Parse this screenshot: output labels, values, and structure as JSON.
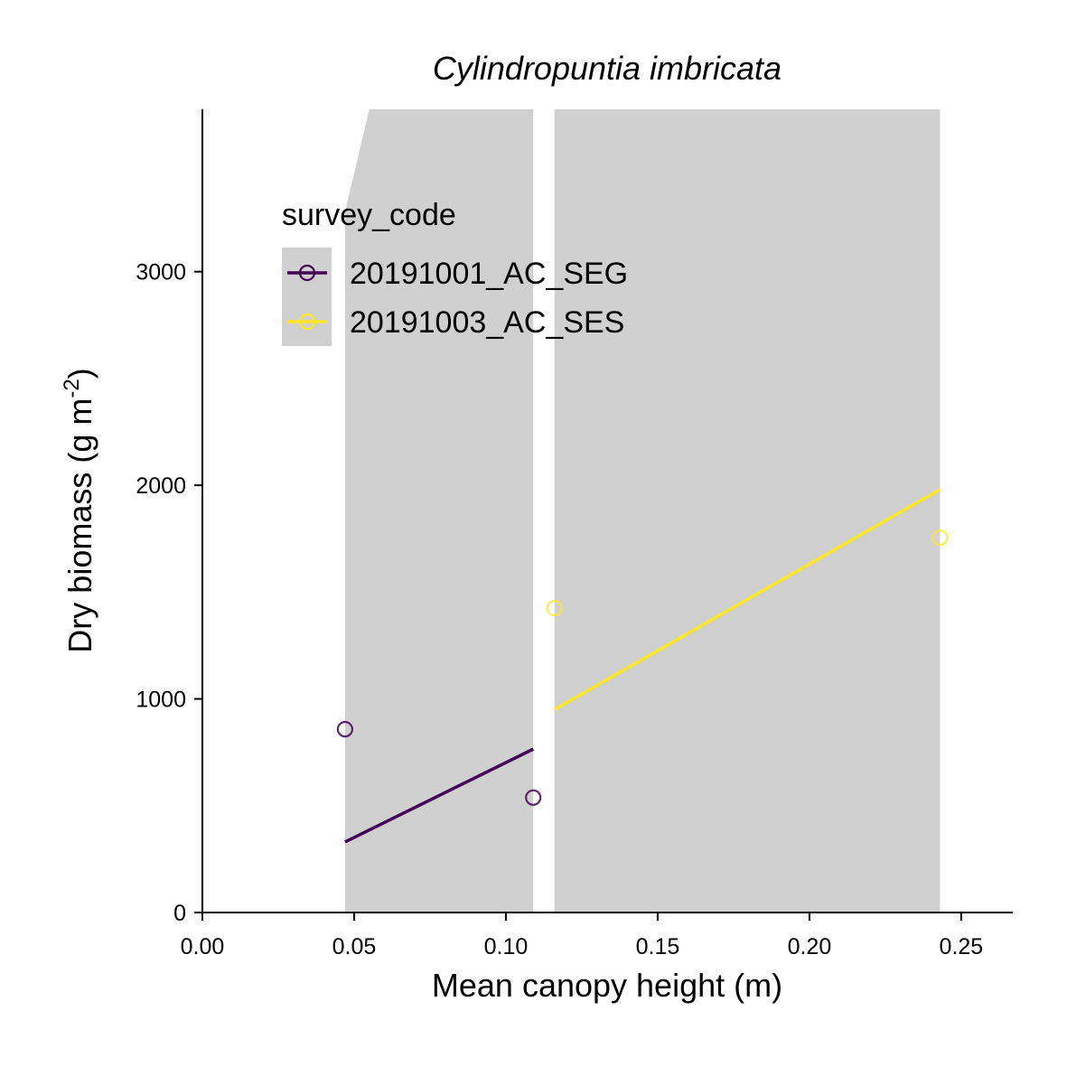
{
  "chart_data": {
    "type": "scatter",
    "title": "Cylindropuntia imbricata",
    "xlabel": "Mean canopy height (m)",
    "ylabel": "Dry biomass (g m",
    "ylabel_sup": "-2",
    "ylabel_close": ")",
    "xlim": [
      0,
      0.267
    ],
    "ylim": [
      0,
      3760
    ],
    "xticks": [
      0.0,
      0.05,
      0.1,
      0.15,
      0.2,
      0.25
    ],
    "xtick_labels": [
      "0.00",
      "0.05",
      "0.10",
      "0.15",
      "0.20",
      "0.25"
    ],
    "yticks": [
      0,
      1000,
      2000,
      3000
    ],
    "ytick_labels": [
      "0",
      "1000",
      "2000",
      "3000"
    ],
    "grid": false,
    "legend": {
      "title": "survey_code",
      "placement": "top-left",
      "entries": [
        "20191001_AC_SEG",
        "20191003_AC_SES"
      ]
    },
    "series": [
      {
        "name": "20191001_AC_SEG",
        "color": "#440154",
        "points": [
          {
            "x": 0.047,
            "y": 858
          },
          {
            "x": 0.109,
            "y": 538
          }
        ],
        "fit_line": [
          [
            0.047,
            330
          ],
          [
            0.109,
            765
          ]
        ],
        "ribbon": {
          "x": [
            0.047,
            0.055,
            0.109
          ],
          "upper": [
            3280,
            3760,
            3760
          ],
          "lower": [
            0,
            0,
            0
          ]
        }
      },
      {
        "name": "20191003_AC_SES",
        "color": "#FDE725",
        "points": [
          {
            "x": 0.116,
            "y": 1425
          },
          {
            "x": 0.243,
            "y": 1755
          }
        ],
        "fit_line": [
          [
            0.116,
            950
          ],
          [
            0.243,
            1980
          ]
        ],
        "ribbon": {
          "x": [
            0.116,
            0.243
          ],
          "upper": [
            3760,
            3760
          ],
          "lower": [
            0,
            0
          ]
        }
      }
    ]
  }
}
